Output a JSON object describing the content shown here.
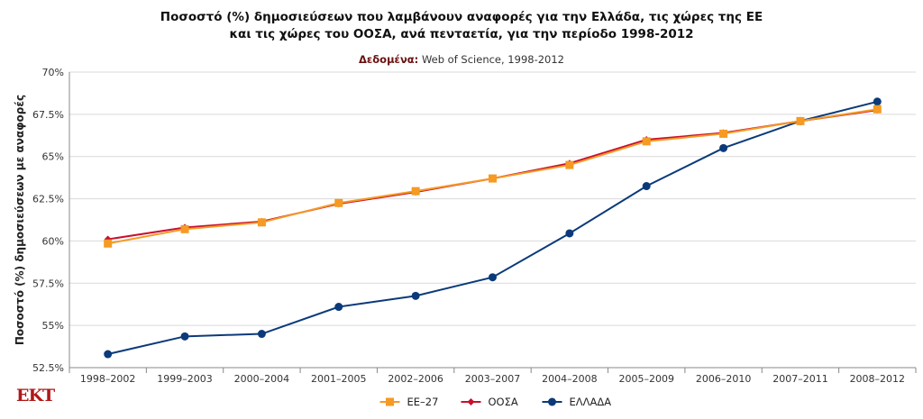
{
  "header": {
    "title_line1": "Ποσοστό (%) δημοσιεύσεων που λαμβάνουν αναφορές για την Ελλάδα, τις χώρες της ΕΕ",
    "title_line2": "και τις χώρες του ΟΟΣΑ, ανά πενταετία, για την περίοδο 1998-2012",
    "data_label": "Δεδομένα:",
    "data_source": "Web of Science, 1998-2012"
  },
  "logo": {
    "text": "EKT"
  },
  "chart_data": {
    "type": "line",
    "ylabel": "Ποσοστό (%) δημοσιεύσεων με αναφορές",
    "xlabel": "",
    "categories": [
      "1998-2002",
      "1999-2003",
      "2000-2004",
      "2001-2005",
      "2002-2006",
      "2003-2007",
      "2004-2008",
      "2005-2009",
      "2006-2010",
      "2007-2011",
      "2008-2012"
    ],
    "ylim": [
      52.5,
      70
    ],
    "yticks": [
      52.5,
      55,
      57.5,
      60,
      62.5,
      65,
      67.5,
      70
    ],
    "ytick_labels": [
      "52.5%",
      "55%",
      "57.5%",
      "60%",
      "62.5%",
      "65%",
      "67.5%",
      "70%"
    ],
    "grid": true,
    "legend_position": "bottom",
    "series": [
      {
        "name": "ΕΕ-27",
        "color": "#f59a23",
        "marker": "square",
        "values": [
          59.85,
          60.7,
          61.1,
          62.25,
          62.95,
          63.7,
          64.5,
          65.9,
          66.35,
          67.1,
          67.8
        ]
      },
      {
        "name": "ΟΟΣΑ",
        "color": "#c8102e",
        "marker": "diamond",
        "values": [
          60.1,
          60.8,
          61.15,
          62.2,
          62.9,
          63.7,
          64.6,
          66.0,
          66.4,
          67.1,
          67.75
        ]
      },
      {
        "name": "ΕΛΛΑΔΑ",
        "color": "#0b3a7a",
        "marker": "circle",
        "values": [
          53.3,
          54.35,
          54.5,
          56.1,
          56.75,
          57.85,
          60.45,
          63.25,
          65.5,
          67.1,
          68.25
        ]
      }
    ]
  }
}
